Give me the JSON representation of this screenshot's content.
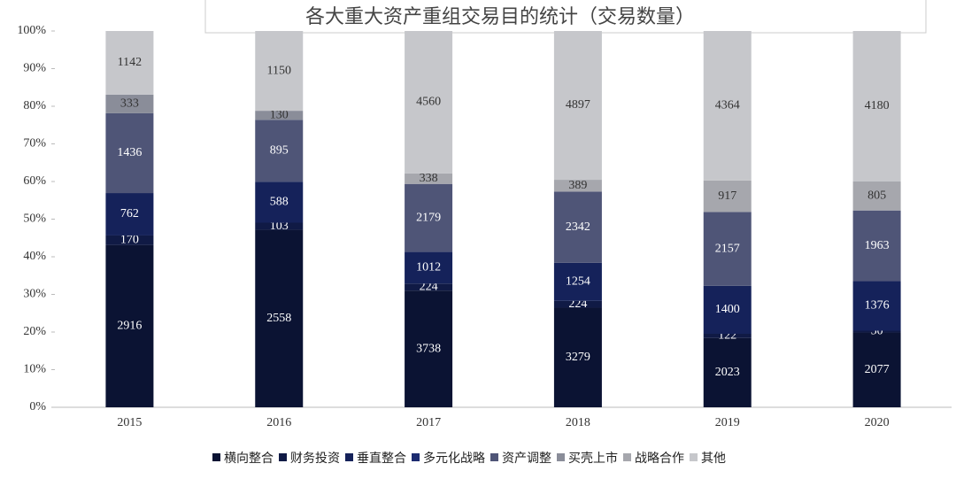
{
  "chart_data": {
    "type": "stacked_percent_bar",
    "title": "各大重大资产重组交易目的统计（交易数量）",
    "categories": [
      "2015",
      "2016",
      "2017",
      "2018",
      "2019",
      "2020"
    ],
    "series": [
      {
        "name": "横向整合",
        "color": "#0b1333",
        "values": [
          2916,
          2558,
          3738,
          3279,
          2023,
          2077
        ]
      },
      {
        "name": "财务投资",
        "color": "#101a45",
        "values": [
          170,
          103,
          224,
          224,
          122,
          50
        ]
      },
      {
        "name": "垂直整合",
        "color": "#15225a",
        "values": [
          762,
          588,
          1012,
          1254,
          1400,
          1376
        ]
      },
      {
        "name": "多元化战略",
        "color": "#1c2b70",
        "values": [
          null,
          null,
          null,
          null,
          null,
          null
        ]
      },
      {
        "name": "资产调整",
        "color": "#4f5577",
        "values": [
          1436,
          895,
          2179,
          2342,
          2157,
          1963
        ]
      },
      {
        "name": "买壳上市",
        "color": "#8a8d99",
        "values": [
          333,
          130,
          null,
          null,
          null,
          null
        ]
      },
      {
        "name": "战略合作",
        "color": "#a6a7ad",
        "values": [
          null,
          null,
          338,
          389,
          917,
          805
        ]
      },
      {
        "name": "其他",
        "color": "#c6c7cb",
        "values": [
          1142,
          1150,
          4560,
          4897,
          4364,
          4180
        ]
      }
    ],
    "ylim": [
      0,
      100
    ],
    "yticks": [
      {
        "value": 0,
        "label": "0%"
      },
      {
        "value": 10,
        "label": "10%"
      },
      {
        "value": 20,
        "label": "20%"
      },
      {
        "value": 30,
        "label": "30%"
      },
      {
        "value": 40,
        "label": "40%"
      },
      {
        "value": 50,
        "label": "50%"
      },
      {
        "value": 60,
        "label": "60%"
      },
      {
        "value": 70,
        "label": "70%"
      },
      {
        "value": 80,
        "label": "80%"
      },
      {
        "value": 90,
        "label": "90%"
      },
      {
        "value": 100,
        "label": "100%"
      }
    ],
    "legend": "bottom"
  }
}
